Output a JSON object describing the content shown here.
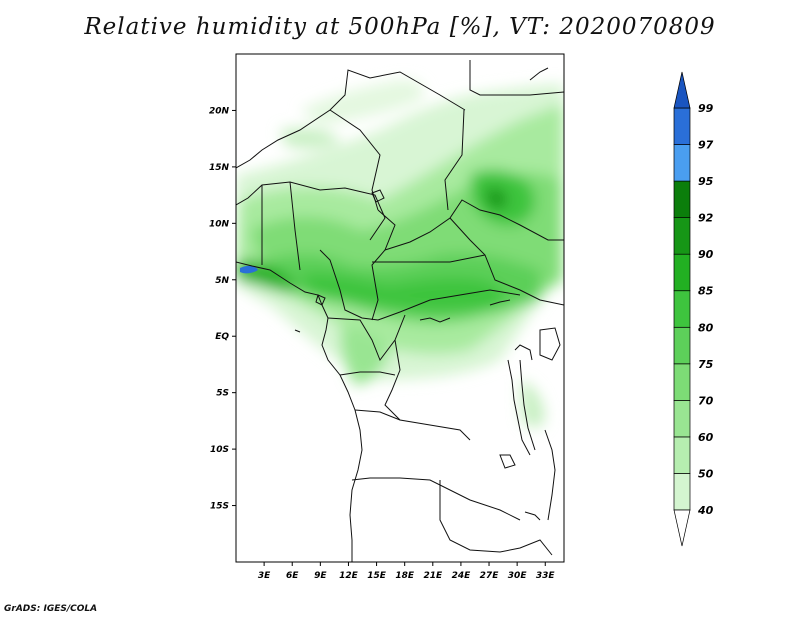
{
  "title": "Relative humidity at 500hPa [%], VT: 2020070809",
  "footer": "GrADS: IGES/COLA",
  "map": {
    "lon_range": [
      0,
      35
    ],
    "lat_range": [
      -20,
      25
    ],
    "x_ticks": [
      "3E",
      "6E",
      "9E",
      "12E",
      "15E",
      "18E",
      "21E",
      "24E",
      "27E",
      "30E",
      "33E"
    ],
    "y_ticks": [
      "20N",
      "15N",
      "10N",
      "5N",
      "EQ",
      "5S",
      "10S",
      "15S"
    ]
  },
  "colorbar": {
    "levels": [
      "40",
      "50",
      "60",
      "70",
      "75",
      "80",
      "85",
      "90",
      "92",
      "95",
      "97",
      "99"
    ],
    "colors": [
      "#f0fcf0",
      "#d4f5d0",
      "#b6eeb0",
      "#99e592",
      "#7ddc76",
      "#5dd05a",
      "#3ec43e",
      "#22b022",
      "#169616",
      "#0b7e0b",
      "#4a9ef0",
      "#2a6fd8",
      "#1a55c0"
    ]
  }
}
